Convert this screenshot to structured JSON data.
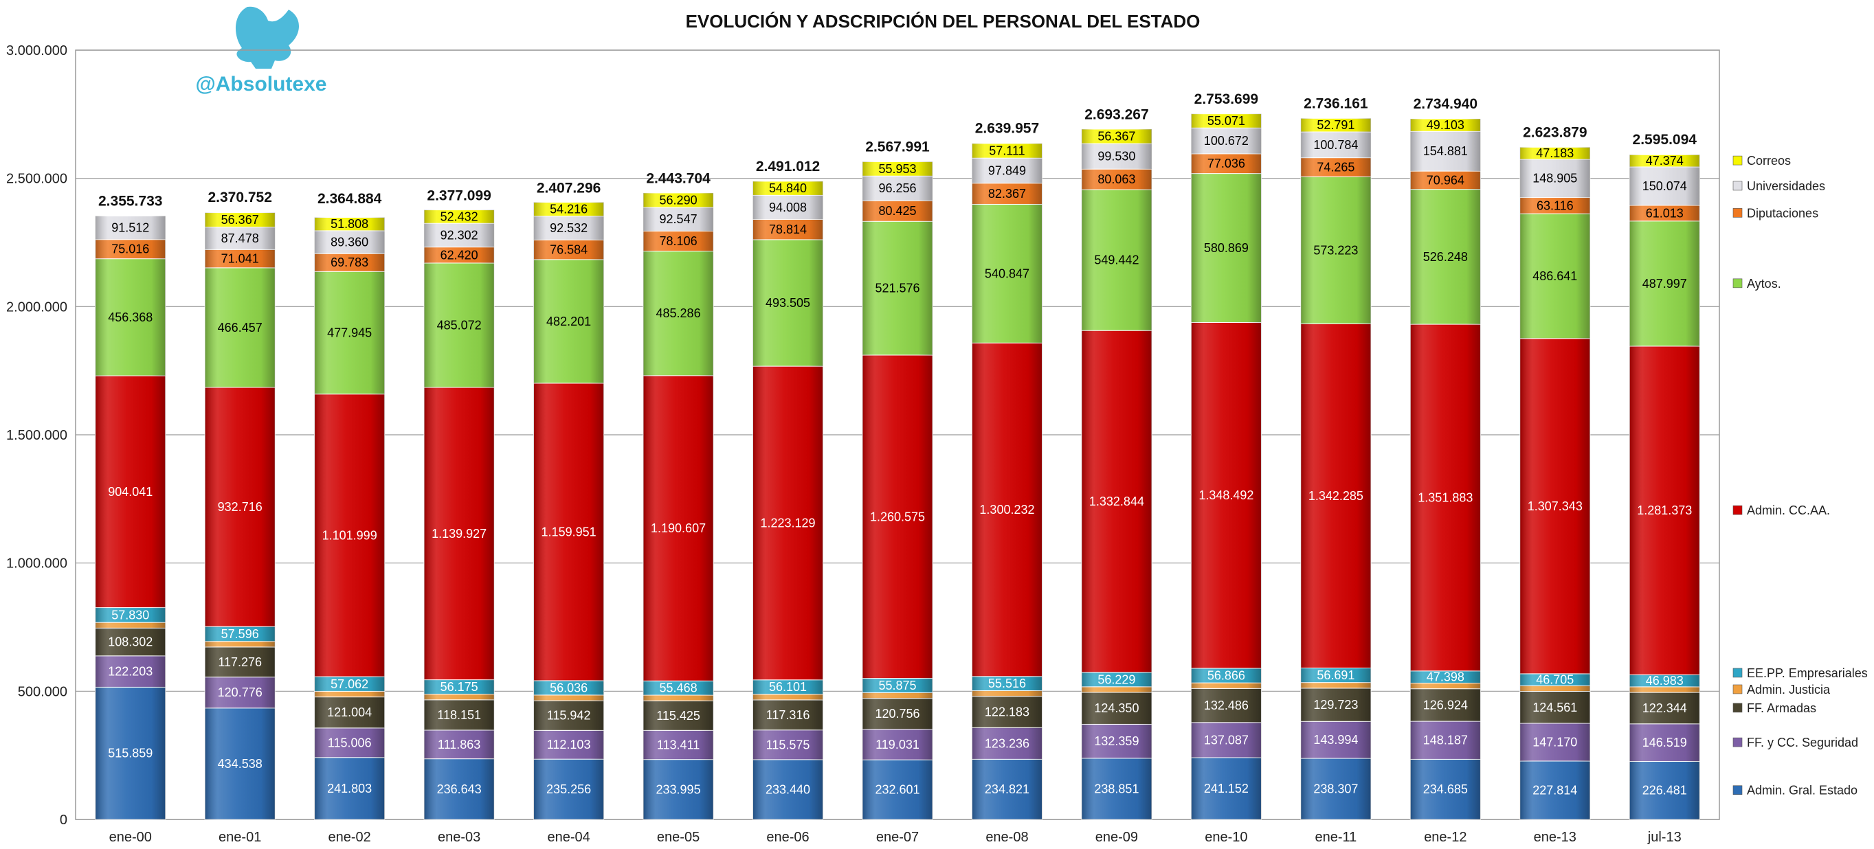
{
  "chart_data": {
    "type": "bar",
    "stacked": true,
    "title": "EVOLUCIÓN Y ADSCRIPCIÓN DEL PERSONAL DEL ESTADO",
    "watermark": "@Absolutexe",
    "categories": [
      "ene-00",
      "ene-01",
      "ene-02",
      "ene-03",
      "ene-04",
      "ene-05",
      "ene-06",
      "ene-07",
      "ene-08",
      "ene-09",
      "ene-10",
      "ene-11",
      "ene-12",
      "ene-13",
      "jul-13"
    ],
    "ylim": [
      0,
      3000000
    ],
    "yticks": [
      0,
      500000,
      1000000,
      1500000,
      2000000,
      2500000,
      3000000
    ],
    "ytick_labels": [
      "0",
      "500.000",
      "1.000.000",
      "1.500.000",
      "2.000.000",
      "2.500.000",
      "3.000.000"
    ],
    "grid": true,
    "legend_position": "right",
    "totals": [
      2355733,
      2370752,
      2364884,
      2377099,
      2407296,
      2443704,
      2491012,
      2567991,
      2639957,
      2693267,
      2753699,
      2736161,
      2734940,
      2623879,
      2595094
    ],
    "total_labels": [
      "2.355.733",
      "2.370.752",
      "2.364.884",
      "2.377.099",
      "2.407.296",
      "2.443.704",
      "2.491.012",
      "2.567.991",
      "2.639.957",
      "2.693.267",
      "2.753.699",
      "2.736.161",
      "2.734.940",
      "2.623.879",
      "2.595.094"
    ],
    "series": [
      {
        "name": "Admin. Gral. Estado",
        "color": "#2e6db4",
        "text_color": "#ffffff",
        "values": [
          515859,
          434538,
          241803,
          236643,
          235256,
          233995,
          233440,
          232601,
          234821,
          238851,
          241152,
          238307,
          234685,
          227814,
          226481
        ],
        "labels": [
          "515.859",
          "434.538",
          "241.803",
          "236.643",
          "235.256",
          "233.995",
          "233.440",
          "232.601",
          "234.821",
          "238.851",
          "241.152",
          "238.307",
          "234.685",
          "227.814",
          "226.481"
        ]
      },
      {
        "name": "FF. y CC. Seguridad",
        "color": "#7d5fa6",
        "text_color": "#ffffff",
        "values": [
          122203,
          120776,
          115006,
          111863,
          112103,
          113411,
          115575,
          119031,
          123236,
          132359,
          137087,
          143994,
          148187,
          147170,
          146519
        ],
        "labels": [
          "122.203",
          "120.776",
          "115.006",
          "111.863",
          "112.103",
          "113.411",
          "115.575",
          "119.031",
          "123.236",
          "132.359",
          "137.087",
          "143.994",
          "148.187",
          "147.170",
          "146.519"
        ]
      },
      {
        "name": "FF. Armadas",
        "color": "#4a4530",
        "text_color": "#ffffff",
        "values": [
          108302,
          117276,
          121004,
          118151,
          115942,
          115425,
          117316,
          120756,
          122183,
          124350,
          132486,
          129723,
          126924,
          124561,
          122344
        ],
        "labels": [
          "108.302",
          "117.276",
          "121.004",
          "118.151",
          "115.942",
          "115.425",
          "117.316",
          "120.756",
          "122.183",
          "124.350",
          "132.486",
          "129.723",
          "126.924",
          "124.561",
          "122.344"
        ]
      },
      {
        "name": "Admin. Justicia",
        "color": "#f0a040",
        "text_color": "#000000",
        "values": [
          22000,
          22000,
          22000,
          22000,
          22000,
          22000,
          22000,
          22000,
          22000,
          22000,
          22000,
          22000,
          22000,
          22000,
          22000
        ],
        "labels": [
          "",
          "",
          "",
          "",
          "",
          "",
          "",
          "",
          "",
          "",
          "",
          "",
          "",
          "",
          ""
        ]
      },
      {
        "name": "EE.PP. Empresariales",
        "color": "#2fa6c6",
        "text_color": "#ffffff",
        "values": [
          57830,
          57596,
          57062,
          56175,
          56036,
          55468,
          56101,
          55875,
          55516,
          56229,
          56866,
          56691,
          47398,
          46705,
          46983
        ],
        "labels": [
          "57.830",
          "57.596",
          "57.062",
          "56.175",
          "56.036",
          "55.468",
          "56.101",
          "55.875",
          "55.516",
          "56.229",
          "56.866",
          "56.691",
          "47.398",
          "46.705",
          "46.983"
        ]
      },
      {
        "name": "Admin. CC.AA.",
        "color": "#d00000",
        "text_color": "#ffffff",
        "values": [
          904041,
          932716,
          1101999,
          1139927,
          1159951,
          1190607,
          1223129,
          1260575,
          1300232,
          1332844,
          1348492,
          1342285,
          1351883,
          1307343,
          1281373
        ],
        "labels": [
          "904.041",
          "932.716",
          "1.101.999",
          "1.139.927",
          "1.159.951",
          "1.190.607",
          "1.223.129",
          "1.260.575",
          "1.300.232",
          "1.332.844",
          "1.348.492",
          "1.342.285",
          "1.351.883",
          "1.307.343",
          "1.281.373"
        ]
      },
      {
        "name": "Aytos.",
        "color": "#8fd64a",
        "text_color": "#000000",
        "values": [
          456368,
          466457,
          477945,
          485072,
          482201,
          485286,
          493505,
          521576,
          540847,
          549442,
          580869,
          573223,
          526248,
          486641,
          487997
        ],
        "labels": [
          "456.368",
          "466.457",
          "477.945",
          "485.072",
          "482.201",
          "485.286",
          "493.505",
          "521.576",
          "540.847",
          "549.442",
          "580.869",
          "573.223",
          "526.248",
          "486.641",
          "487.997"
        ]
      },
      {
        "name": "Diputaciones",
        "color": "#f07820",
        "text_color": "#000000",
        "values": [
          75016,
          71041,
          69783,
          62420,
          76584,
          78106,
          78814,
          80425,
          82367,
          80063,
          77036,
          74265,
          70964,
          63116,
          61013
        ],
        "labels": [
          "75.016",
          "71.041",
          "69.783",
          "62.420",
          "76.584",
          "78.106",
          "78.814",
          "80.425",
          "82.367",
          "80.063",
          "77.036",
          "74.265",
          "70.964",
          "63.116",
          "61.013"
        ]
      },
      {
        "name": "Universidades",
        "color": "#e0e0e6",
        "text_color": "#000000",
        "values": [
          91512,
          87478,
          89360,
          92302,
          92532,
          92547,
          94008,
          96256,
          97849,
          99530,
          100672,
          100784,
          154881,
          148905,
          150074
        ],
        "labels": [
          "91.512",
          "87.478",
          "89.360",
          "92.302",
          "92.532",
          "92.547",
          "94.008",
          "96.256",
          "97.849",
          "99.530",
          "100.672",
          "100.784",
          "154.881",
          "148.905",
          "150.074"
        ]
      },
      {
        "name": "Correos",
        "color": "#f7f700",
        "text_color": "#000000",
        "values": [
          0,
          56367,
          51808,
          52432,
          54216,
          56290,
          54840,
          55953,
          57111,
          56367,
          55071,
          52791,
          49103,
          47183,
          47374
        ],
        "labels": [
          "",
          "56.367",
          "51.808",
          "52.432",
          "54.216",
          "56.290",
          "54.840",
          "55.953",
          "57.111",
          "56.367",
          "55.071",
          "52.791",
          "49.103",
          "47.183",
          "47.374"
        ]
      }
    ]
  }
}
